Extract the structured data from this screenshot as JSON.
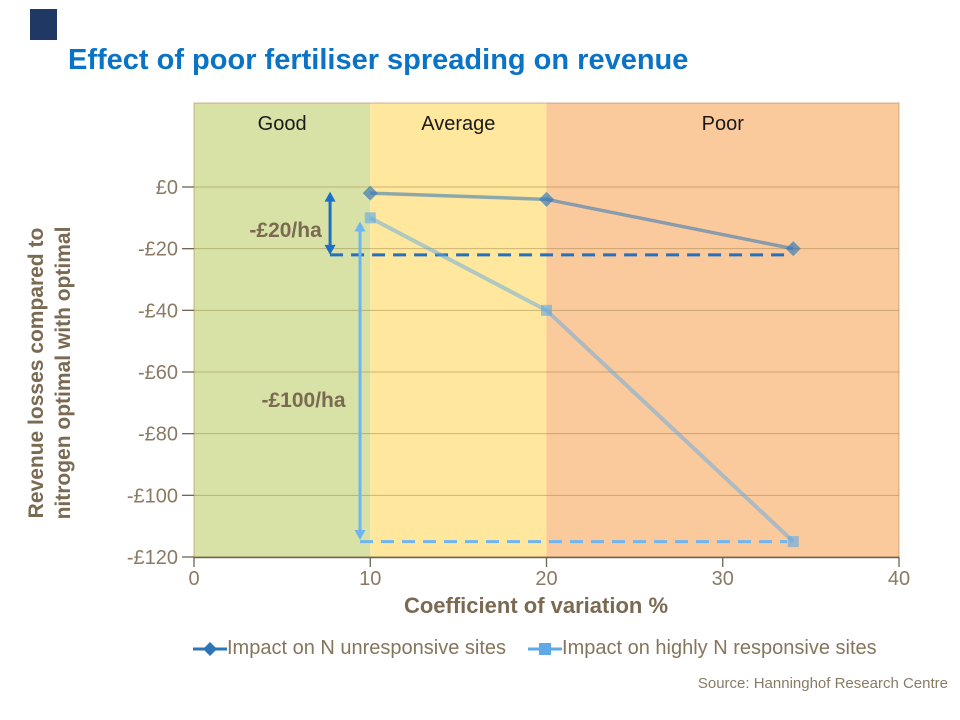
{
  "title": {
    "text": "Effect of poor fertiliser spreading on revenue",
    "color": "#0A73C6"
  },
  "brand": {
    "color": "#1F3864"
  },
  "chart_data": {
    "type": "line",
    "title": "Effect of poor fertiliser spreading on revenue",
    "xlabel": "Coefficient of variation %",
    "ylabel_line1": "Revenue losses compared to",
    "ylabel_line2": "nitrogen optimal with optimal",
    "xlim": [
      0,
      40
    ],
    "ylim": [
      -120,
      0
    ],
    "grid": "horizontal",
    "legend_position": "bottom",
    "x_ticks": [
      0,
      10,
      20,
      30,
      40
    ],
    "y_ticks": [
      {
        "value": 0,
        "label": "£0"
      },
      {
        "value": -20,
        "label": "-£20"
      },
      {
        "value": -40,
        "label": "-£40"
      },
      {
        "value": -60,
        "label": "-£60"
      },
      {
        "value": -80,
        "label": "-£80"
      },
      {
        "value": -100,
        "label": "-£100"
      },
      {
        "value": -120,
        "label": "-£120"
      }
    ],
    "zones": [
      {
        "label": "Good",
        "from": 0,
        "to": 10,
        "color": "#D8E2A6"
      },
      {
        "label": "Average",
        "from": 10,
        "to": 20,
        "color": "#FFE79D"
      },
      {
        "label": "Poor",
        "from": 20,
        "to": 40,
        "color": "#FACA9D"
      }
    ],
    "series": [
      {
        "name": "Impact on N unresponsive sites",
        "color": "#2E75B6",
        "marker": "diamond",
        "line_width": 3.5,
        "line_opacity": 0.55,
        "marker_opacity": 0.65,
        "points": [
          [
            10,
            -2
          ],
          [
            20,
            -4
          ],
          [
            34,
            -20
          ]
        ]
      },
      {
        "name": "Impact on highly N responsive sites",
        "color": "#5FA9E6",
        "marker": "square",
        "line_width": 4,
        "line_opacity": 0.5,
        "marker_opacity": 0.62,
        "points": [
          [
            10,
            -10
          ],
          [
            20,
            -40
          ],
          [
            34,
            -115
          ]
        ]
      }
    ],
    "reference_lines": [
      {
        "y": -22,
        "x_from": 7.72,
        "x_to": 33.65,
        "color": "#2470BE",
        "style": "dashed",
        "width": 3
      },
      {
        "y": -115,
        "x_from": 9.42,
        "x_to": 33.65,
        "color": "#6FB5F2",
        "style": "dashed",
        "width": 3
      }
    ],
    "arrows": [
      {
        "x": 7.72,
        "y_from": -1.5,
        "y_to": -22,
        "color": "#1B6FC4",
        "double_headed": true,
        "width": 3
      },
      {
        "x": 9.42,
        "y_from": -11.2,
        "y_to": -114.5,
        "color": "#6FB5F2",
        "double_headed": true,
        "width": 3
      }
    ],
    "annotations": [
      {
        "text": "-£20/ha",
        "x": 7.25,
        "y": -14,
        "color": "#7A6A52"
      },
      {
        "text": "-£100/ha",
        "x": 8.6,
        "y": -69,
        "color": "#7A6A52"
      }
    ],
    "style": {
      "tick_label_color": "#8A7A64",
      "axis_title_color": "#7A6A52",
      "zone_label_color": "#1A1A1A",
      "grid_color": "rgba(130,100,40,0.38)",
      "axis_line_color": "#6B6553",
      "plot_border_color": "rgba(170,115,50,0.5)"
    }
  },
  "source": {
    "text": "Source: Hanninghof  Research Centre"
  }
}
